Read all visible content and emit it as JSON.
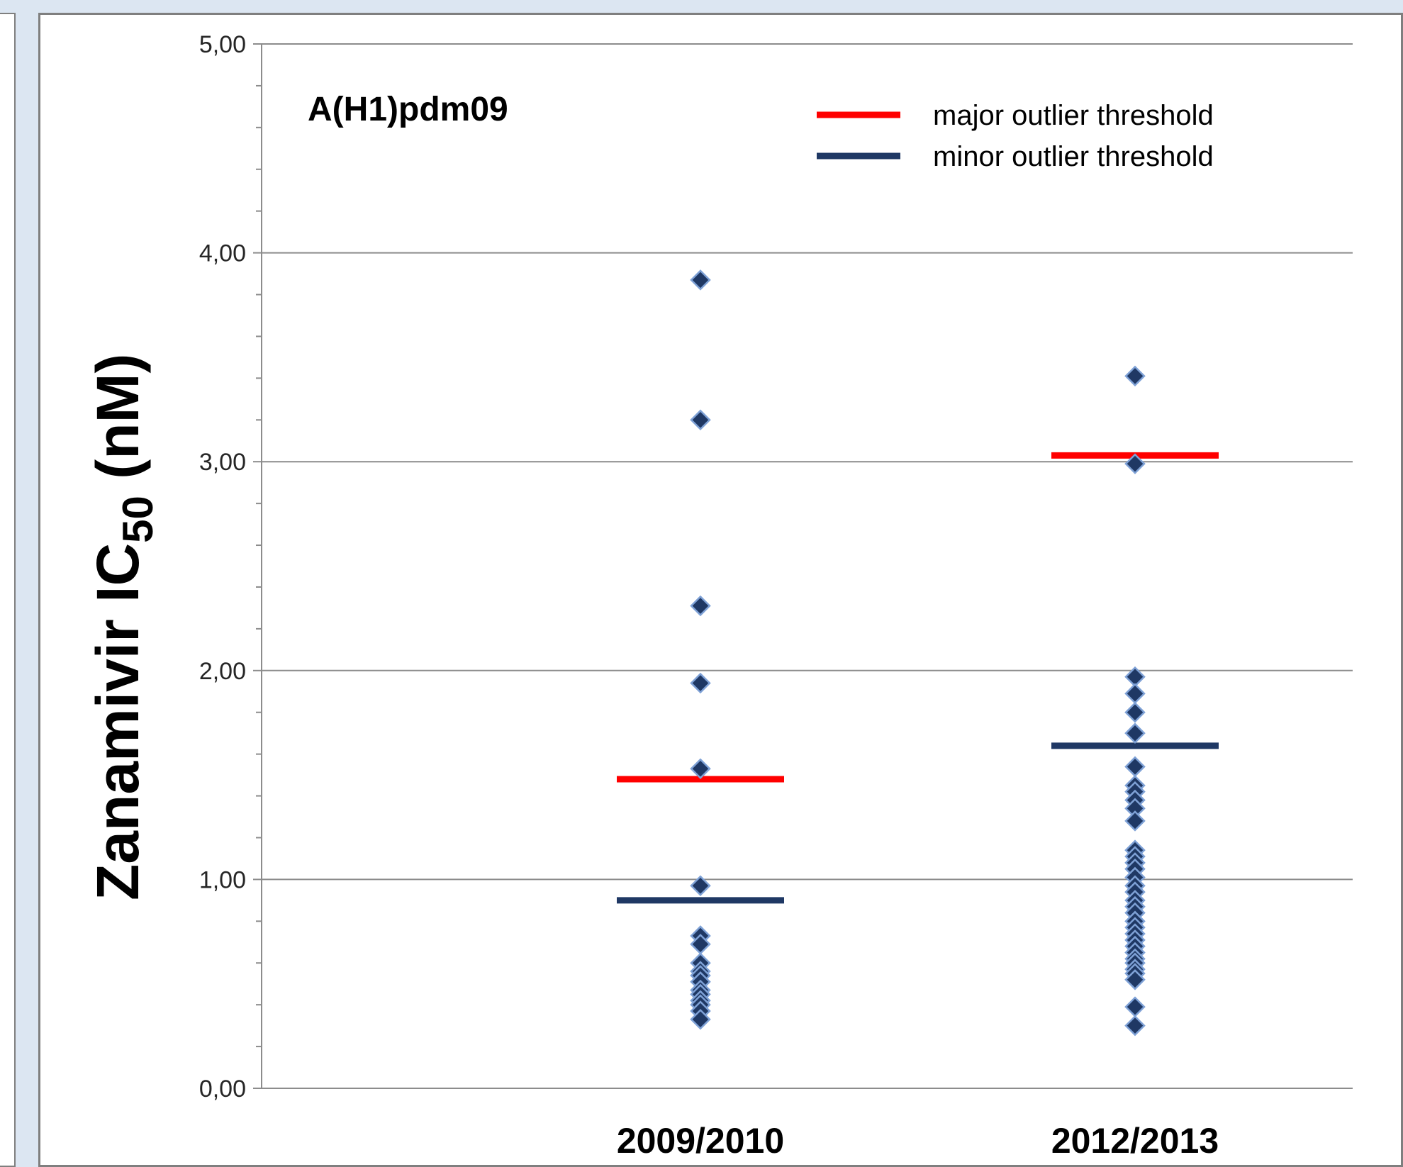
{
  "chart_data": {
    "type": "scatter",
    "title": "A(H1)pdm09",
    "ylabel": "Zanamivir IC",
    "ylabel_subscript": "50",
    "ylabel_unit": " (nM)",
    "ylim": [
      0,
      5
    ],
    "yticks": [
      "0,00",
      "1,00",
      "2,00",
      "3,00",
      "4,00",
      "5,00"
    ],
    "categories": [
      "2009/2010",
      "2012/2013"
    ],
    "grid": true,
    "legend_position": "top-right",
    "point_color": "#1f3864",
    "series": [
      {
        "category": "2009/2010",
        "values": [
          3.87,
          3.2,
          2.31,
          1.94,
          1.53,
          0.97,
          0.73,
          0.69,
          0.6,
          0.56,
          0.54,
          0.51,
          0.47,
          0.45,
          0.42,
          0.4,
          0.37,
          0.33
        ]
      },
      {
        "category": "2012/2013",
        "values": [
          3.41,
          2.99,
          1.97,
          1.89,
          1.8,
          1.7,
          1.54,
          1.45,
          1.42,
          1.38,
          1.34,
          1.28,
          1.14,
          1.11,
          1.08,
          1.05,
          1.01,
          0.97,
          0.94,
          0.9,
          0.87,
          0.84,
          0.8,
          0.77,
          0.74,
          0.71,
          0.68,
          0.65,
          0.62,
          0.6,
          0.57,
          0.55,
          0.52,
          0.39,
          0.3
        ]
      }
    ],
    "thresholds": [
      {
        "name": "major outlier threshold",
        "color": "#ff0000",
        "values": [
          1.48,
          3.03
        ]
      },
      {
        "name": "minor outlier threshold",
        "color": "#1f3864",
        "values": [
          0.9,
          1.64
        ]
      }
    ]
  }
}
